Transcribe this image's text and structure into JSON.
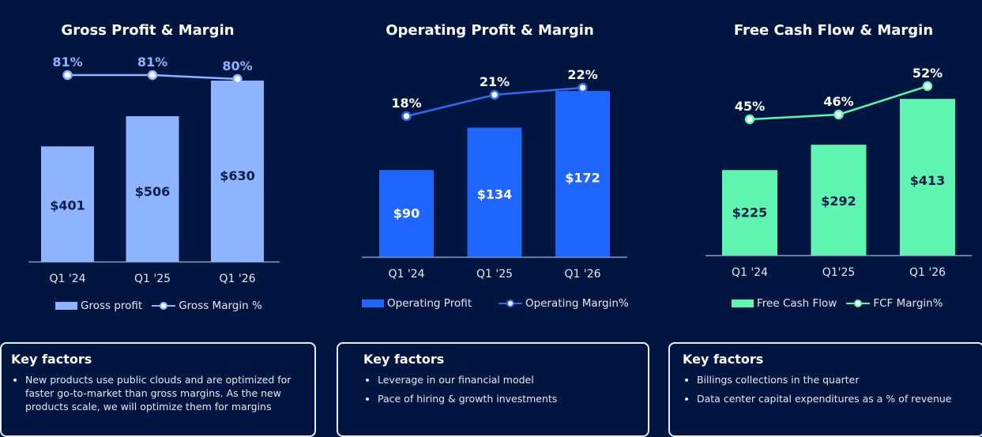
{
  "chart_data": [
    {
      "type": "bar+line",
      "title": "Gross Profit & Margin",
      "categories": [
        "Q1 '24",
        "Q1 '25",
        "Q1 '26"
      ],
      "series": [
        {
          "name": "Gross profit",
          "values": [
            401,
            506,
            630
          ],
          "labels": [
            "$401",
            "$506",
            "$630"
          ],
          "color": "#8fb4ff"
        },
        {
          "name": "Gross Margin %",
          "values": [
            81,
            81,
            80
          ],
          "labels": [
            "81%",
            "81%",
            "80%"
          ],
          "color": "#8fb4ff"
        }
      ]
    },
    {
      "type": "bar+line",
      "title": "Operating Profit & Margin",
      "categories": [
        "Q1 '24",
        "Q1 '25",
        "Q1 '26"
      ],
      "series": [
        {
          "name": "Operating Profit",
          "values": [
            90,
            134,
            172
          ],
          "labels": [
            "$90",
            "$134",
            "$172"
          ],
          "color": "#1f66ff"
        },
        {
          "name": "Operating Margin%",
          "values": [
            18,
            21,
            22
          ],
          "labels": [
            "18%",
            "21%",
            "22%"
          ],
          "color": "#2f6af0"
        }
      ]
    },
    {
      "type": "bar+line",
      "title": "Free Cash Flow & Margin",
      "categories": [
        "Q1 '24",
        "Q1'25",
        "Q1 '26"
      ],
      "series": [
        {
          "name": "Free Cash Flow",
          "values": [
            225,
            292,
            413
          ],
          "labels": [
            "$225",
            "$292",
            "$413"
          ],
          "color": "#5ff5b0"
        },
        {
          "name": "FCF Margin%",
          "values": [
            45,
            46,
            52
          ],
          "labels": [
            "45%",
            "46%",
            "52%"
          ],
          "color": "#5ff5b0"
        }
      ]
    }
  ],
  "key_factors": [
    {
      "title": "Key factors",
      "items": [
        "New products use public clouds and are optimized for faster go-to-market than gross margins. As the new products scale, we will optimize them for margins"
      ]
    },
    {
      "title": "Key factors",
      "items": [
        "Leverage in our financial model",
        "Pace of hiring & growth investments"
      ]
    },
    {
      "title": "Key factors",
      "items": [
        "Billings collections in the quarter",
        "Data center capital expenditures as a % of revenue"
      ]
    }
  ]
}
